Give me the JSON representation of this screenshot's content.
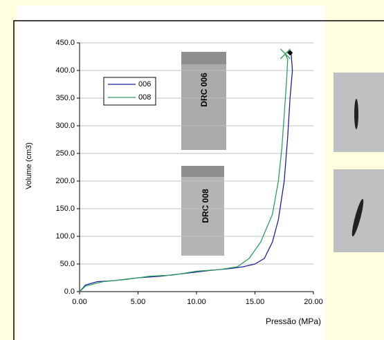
{
  "chart_data": {
    "type": "line",
    "y_label": "Volume (cm3)",
    "x_label": "Pressão (MPa)",
    "xlim": [
      0,
      20
    ],
    "ylim": [
      0,
      450
    ],
    "xticks": [
      {
        "value": 0,
        "label": "0.00"
      },
      {
        "value": 5,
        "label": "5.00"
      },
      {
        "value": 10,
        "label": "10.00"
      },
      {
        "value": 15,
        "label": "15.00"
      },
      {
        "value": 20,
        "label": "20.00"
      }
    ],
    "yticks": [
      {
        "value": 0,
        "label": "0.0"
      },
      {
        "value": 50,
        "label": "50.0"
      },
      {
        "value": 100,
        "label": "100.0"
      },
      {
        "value": 150,
        "label": "150.0"
      },
      {
        "value": 200,
        "label": "200.0"
      },
      {
        "value": 250,
        "label": "250.0"
      },
      {
        "value": 300,
        "label": "300.0"
      },
      {
        "value": 350,
        "label": "350.0"
      },
      {
        "value": 400,
        "label": "400.0"
      },
      {
        "value": 450,
        "label": "450.0"
      }
    ],
    "grid": true,
    "series": [
      {
        "name": "006",
        "color": "#1f1f9f",
        "x": [
          0,
          0.5,
          1.5,
          3,
          5,
          7,
          9,
          11,
          13,
          14,
          15,
          15.8,
          16.5,
          17,
          17.5,
          17.8,
          18,
          18.2,
          18.1,
          17.9
        ],
        "values": [
          0,
          12,
          18,
          20,
          25,
          28,
          33,
          38,
          42,
          45,
          50,
          60,
          90,
          130,
          200,
          280,
          350,
          400,
          430,
          432
        ]
      },
      {
        "name": "008",
        "color": "#2e9e5e",
        "x": [
          0,
          0.5,
          2,
          4,
          6,
          8,
          10,
          12,
          13.5,
          14.5,
          15.5,
          16.5,
          17,
          17.3,
          17.5,
          17.7,
          17.8,
          17.6
        ],
        "values": [
          0,
          10,
          18,
          22,
          28,
          30,
          37,
          40,
          45,
          60,
          90,
          140,
          200,
          260,
          320,
          380,
          420,
          430
        ]
      }
    ],
    "markers": [
      {
        "x": 17.6,
        "y": 430,
        "shape": "x",
        "color": "#2e9e5e"
      },
      {
        "x": 18.0,
        "y": 432,
        "shape": "diamond",
        "color": "#000000"
      }
    ],
    "annotations": [
      "DRC 006",
      "DRC 008"
    ]
  }
}
